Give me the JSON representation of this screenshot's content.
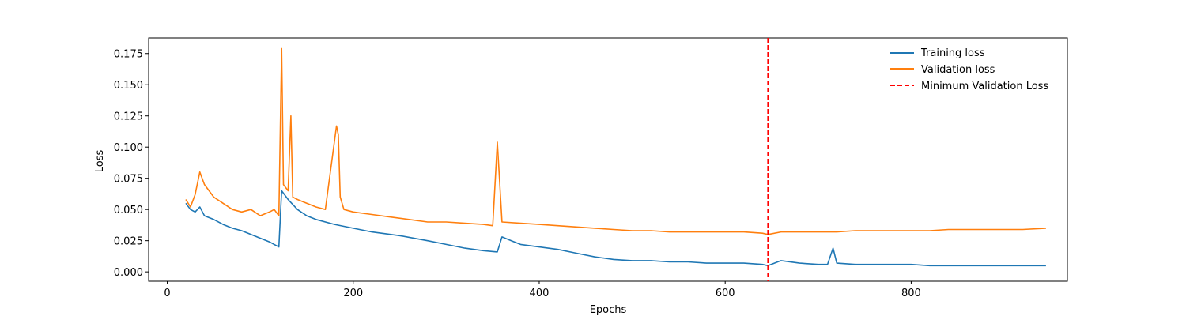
{
  "chart_data": {
    "type": "line",
    "title": "",
    "xlabel": "Epochs",
    "ylabel": "Loss",
    "xlim": [
      -20,
      968
    ],
    "ylim": [
      -0.0075,
      0.1875
    ],
    "x_ticks": [
      0,
      200,
      400,
      600,
      800
    ],
    "y_ticks": [
      0.0,
      0.025,
      0.05,
      0.075,
      0.1,
      0.125,
      0.15,
      0.175
    ],
    "x_tick_labels": [
      "0",
      "200",
      "400",
      "600",
      "800"
    ],
    "y_tick_labels": [
      "0.000",
      "0.025",
      "0.050",
      "0.075",
      "0.100",
      "0.125",
      "0.150",
      "0.175"
    ],
    "grid": false,
    "legend_position": "top-right",
    "series": [
      {
        "name": "Training loss",
        "color": "#1f77b4",
        "x": [
          20,
          25,
          30,
          35,
          40,
          50,
          60,
          70,
          80,
          90,
          100,
          110,
          115,
          120,
          123,
          130,
          140,
          150,
          160,
          180,
          200,
          220,
          250,
          280,
          300,
          320,
          340,
          355,
          360,
          370,
          380,
          400,
          420,
          440,
          460,
          480,
          500,
          520,
          540,
          560,
          580,
          600,
          620,
          640,
          646,
          660,
          680,
          700,
          710,
          716,
          720,
          740,
          760,
          780,
          800,
          820,
          840,
          860,
          880,
          900,
          920,
          945
        ],
        "y": [
          0.055,
          0.05,
          0.048,
          0.052,
          0.045,
          0.042,
          0.038,
          0.035,
          0.033,
          0.03,
          0.027,
          0.024,
          0.022,
          0.02,
          0.065,
          0.058,
          0.05,
          0.045,
          0.042,
          0.038,
          0.035,
          0.032,
          0.029,
          0.025,
          0.022,
          0.019,
          0.017,
          0.016,
          0.028,
          0.025,
          0.022,
          0.02,
          0.018,
          0.015,
          0.012,
          0.01,
          0.009,
          0.009,
          0.008,
          0.008,
          0.007,
          0.007,
          0.007,
          0.006,
          0.005,
          0.009,
          0.007,
          0.006,
          0.006,
          0.019,
          0.007,
          0.006,
          0.006,
          0.006,
          0.006,
          0.005,
          0.005,
          0.005,
          0.005,
          0.005,
          0.005,
          0.005
        ]
      },
      {
        "name": "Validation loss",
        "color": "#ff7f0e",
        "x": [
          20,
          25,
          30,
          35,
          40,
          50,
          60,
          70,
          80,
          90,
          100,
          110,
          115,
          120,
          123,
          125,
          130,
          133,
          135,
          140,
          150,
          160,
          170,
          182,
          184,
          186,
          190,
          200,
          220,
          240,
          260,
          280,
          300,
          320,
          340,
          350,
          355,
          360,
          380,
          400,
          420,
          440,
          460,
          480,
          500,
          520,
          540,
          560,
          580,
          600,
          620,
          640,
          646,
          660,
          680,
          700,
          720,
          740,
          760,
          780,
          800,
          820,
          840,
          860,
          880,
          900,
          920,
          945
        ],
        "y": [
          0.058,
          0.052,
          0.062,
          0.08,
          0.07,
          0.06,
          0.055,
          0.05,
          0.048,
          0.05,
          0.045,
          0.048,
          0.05,
          0.045,
          0.179,
          0.07,
          0.065,
          0.125,
          0.06,
          0.058,
          0.055,
          0.052,
          0.05,
          0.117,
          0.11,
          0.06,
          0.05,
          0.048,
          0.046,
          0.044,
          0.042,
          0.04,
          0.04,
          0.039,
          0.038,
          0.037,
          0.104,
          0.04,
          0.039,
          0.038,
          0.037,
          0.036,
          0.035,
          0.034,
          0.033,
          0.033,
          0.032,
          0.032,
          0.032,
          0.032,
          0.032,
          0.031,
          0.03,
          0.032,
          0.032,
          0.032,
          0.032,
          0.033,
          0.033,
          0.033,
          0.033,
          0.033,
          0.034,
          0.034,
          0.034,
          0.034,
          0.034,
          0.035
        ]
      },
      {
        "name": "Minimum Validation Loss",
        "color": "#ff0000",
        "x_value": 646,
        "style": "dashed-vertical"
      }
    ]
  }
}
